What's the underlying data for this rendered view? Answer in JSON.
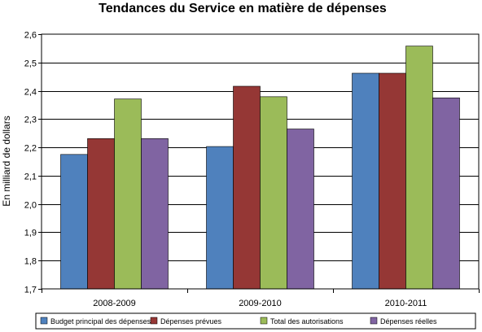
{
  "chart_data": {
    "type": "bar",
    "title": "Tendances du Service en matière de dépenses",
    "xlabel": "",
    "ylabel": "En milliard de dollars",
    "ylim": [
      1.7,
      2.6
    ],
    "yticks": [
      "1,7",
      "1,8",
      "1,9",
      "2,0",
      "2,1",
      "2,2",
      "2,3",
      "2,4",
      "2,5",
      "2,6"
    ],
    "ytick_values": [
      1.7,
      1.8,
      1.9,
      2.0,
      2.1,
      2.2,
      2.3,
      2.4,
      2.5,
      2.6
    ],
    "grid": true,
    "legend_position": "bottom",
    "categories": [
      "2008-2009",
      "2009-2010",
      "2010-2011"
    ],
    "series": [
      {
        "name": "Budget principal des dépenses",
        "color": "#4f81bd",
        "values": [
          2.175,
          2.203,
          2.462
        ]
      },
      {
        "name": "Dépenses prévues",
        "color": "#953735",
        "values": [
          2.231,
          2.416,
          2.462
        ]
      },
      {
        "name": "Total des autorisations",
        "color": "#9bbb59",
        "values": [
          2.371,
          2.379,
          2.558
        ]
      },
      {
        "name": "Dépenses réelles",
        "color": "#8064a2",
        "values": [
          2.231,
          2.265,
          2.375
        ]
      }
    ]
  }
}
